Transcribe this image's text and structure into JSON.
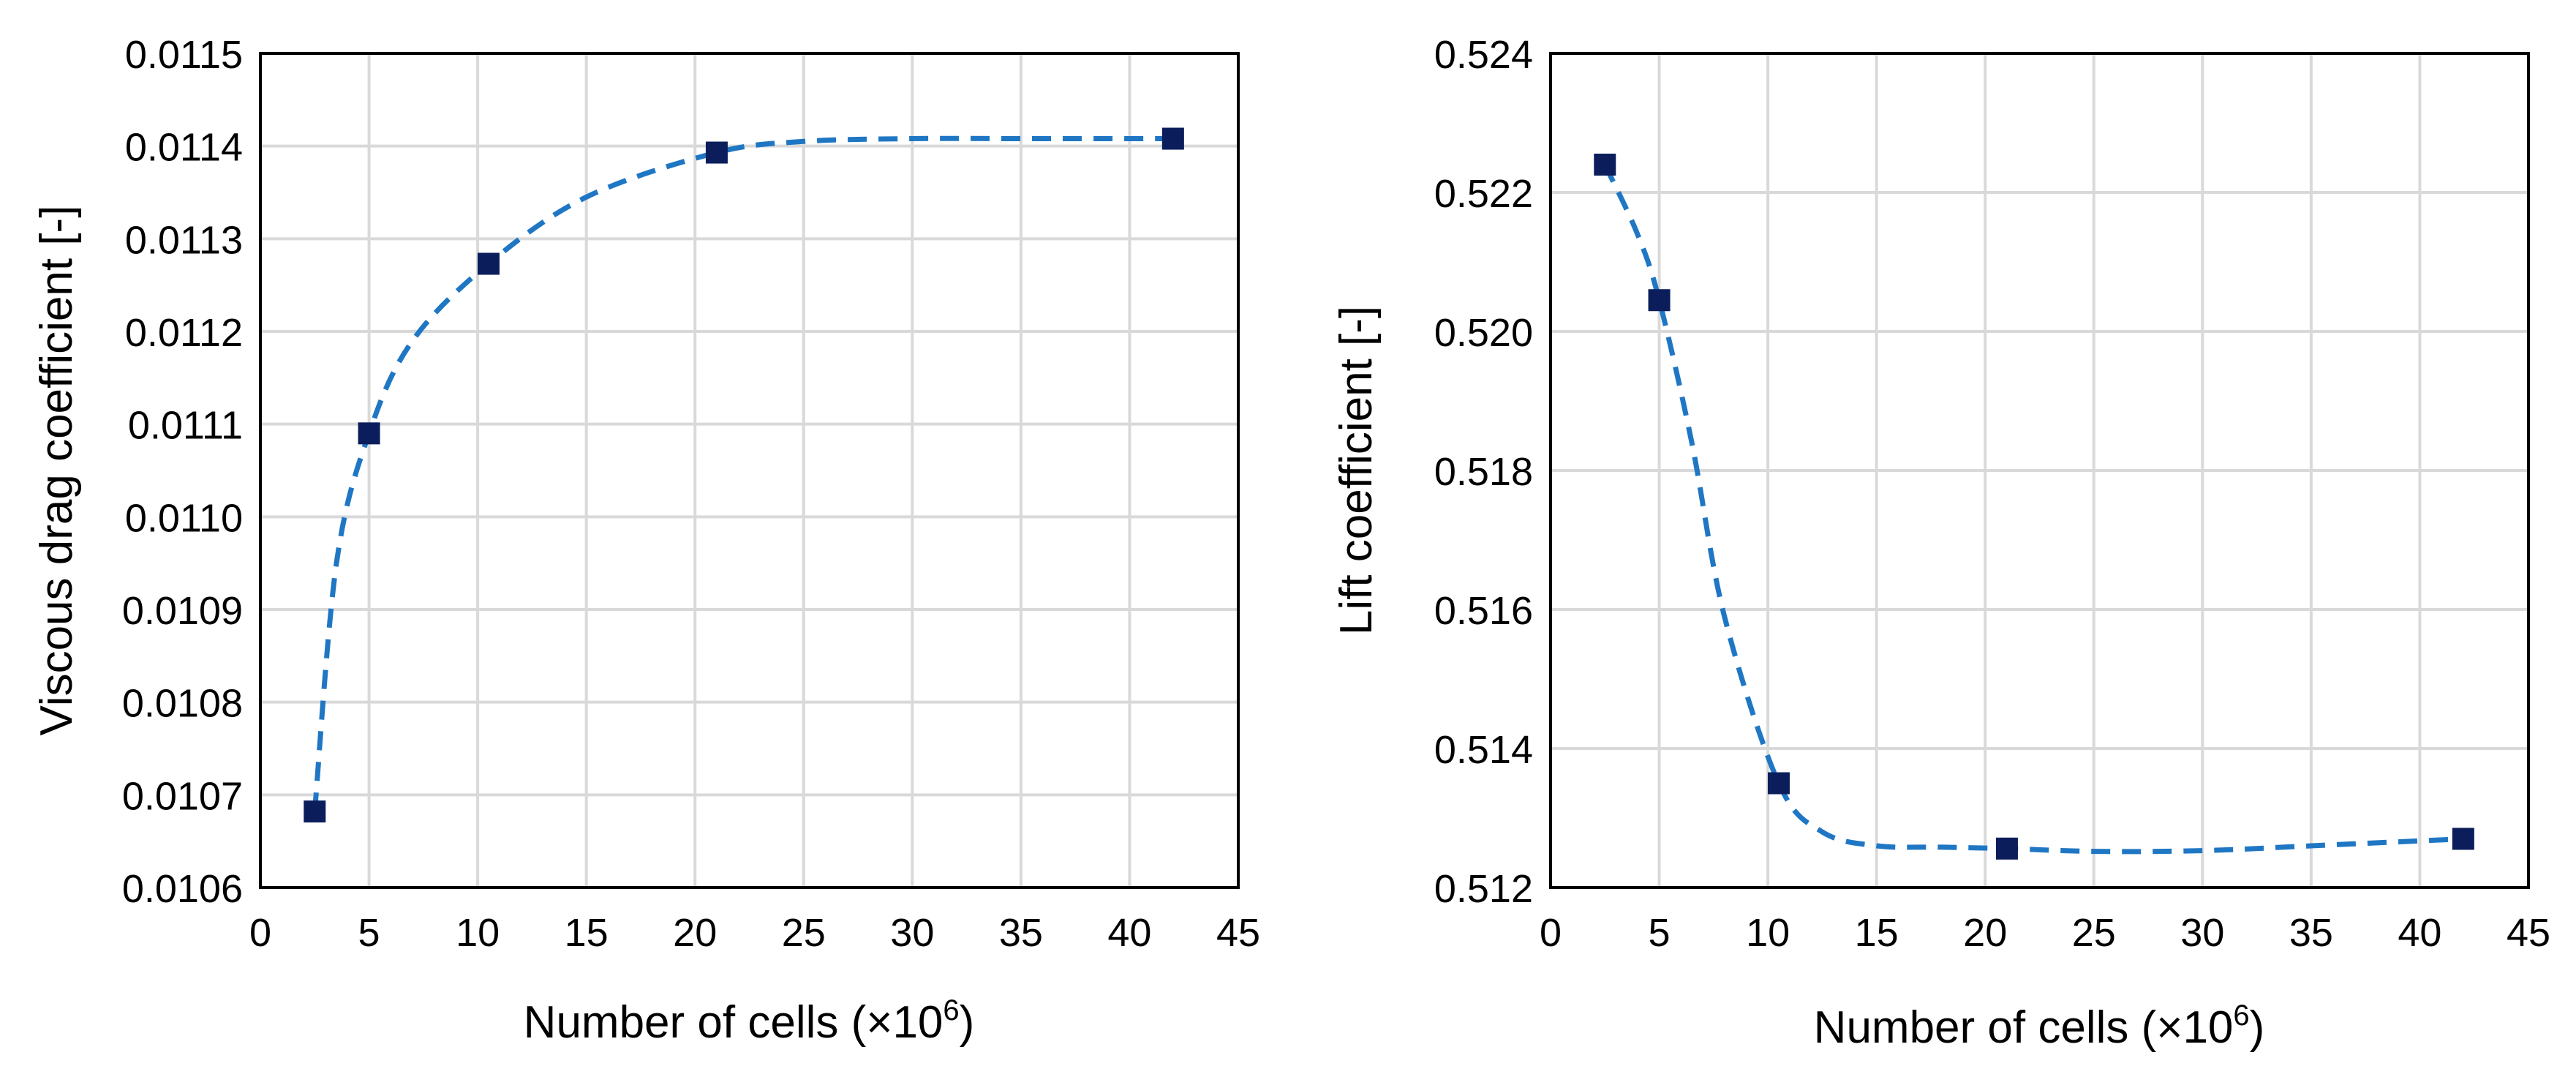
{
  "colors": {
    "marker": "#0b1e5b",
    "trendline": "#1f77c4",
    "grid": "#d9d9d9",
    "frame": "#000000"
  },
  "chart_data": [
    {
      "type": "scatter",
      "title": "",
      "xlabel": "Number of cells (×10",
      "xlabel_sup": "6",
      "xlabel_close": ")",
      "ylabel": "Viscous drag coefficient [-]",
      "xlim": [
        0,
        45
      ],
      "ylim": [
        0.0106,
        0.0115
      ],
      "x_ticks": [
        0,
        5,
        10,
        15,
        20,
        25,
        30,
        35,
        40,
        45
      ],
      "y_ticks": [
        0.0106,
        0.0107,
        0.0108,
        0.0109,
        0.011,
        0.0111,
        0.0112,
        0.0113,
        0.0114,
        0.0115
      ],
      "x_tick_labels": [
        "0",
        "5",
        "10",
        "15",
        "20",
        "25",
        "30",
        "35",
        "40",
        "45"
      ],
      "y_tick_labels": [
        "0.0106",
        "0.0107",
        "0.0108",
        "0.0109",
        "0.0110",
        "0.0111",
        "0.0112",
        "0.0113",
        "0.0114",
        "0.0115"
      ],
      "grid": true,
      "series": [
        {
          "name": "Viscous drag coefficient",
          "x": [
            2.5,
            5,
            10.5,
            21,
            42
          ],
          "y": [
            0.010682,
            0.01109,
            0.011273,
            0.011393,
            0.011408
          ]
        }
      ],
      "trendline": {
        "style": "dashed",
        "x": [
          2.5,
          3.5,
          5,
          7,
          10.5,
          15,
          21,
          25,
          30,
          35,
          42
        ],
        "y": [
          0.010682,
          0.01095,
          0.01109,
          0.01119,
          0.011273,
          0.011345,
          0.011393,
          0.011405,
          0.011408,
          0.011408,
          0.011408
        ]
      }
    },
    {
      "type": "scatter",
      "title": "",
      "xlabel": "Number of cells (×10",
      "xlabel_sup": "6",
      "xlabel_close": ")",
      "ylabel": "Lift coefficient [-]",
      "xlim": [
        0,
        45
      ],
      "ylim": [
        0.512,
        0.524
      ],
      "x_ticks": [
        0,
        5,
        10,
        15,
        20,
        25,
        30,
        35,
        40,
        45
      ],
      "y_ticks": [
        0.512,
        0.514,
        0.516,
        0.518,
        0.52,
        0.522,
        0.524
      ],
      "x_tick_labels": [
        "0",
        "5",
        "10",
        "15",
        "20",
        "25",
        "30",
        "35",
        "40",
        "45"
      ],
      "y_tick_labels": [
        "0.512",
        "0.514",
        "0.516",
        "0.518",
        "0.520",
        "0.522",
        "0.524"
      ],
      "grid": true,
      "series": [
        {
          "name": "Lift coefficient",
          "x": [
            2.5,
            5,
            10.5,
            21,
            42
          ],
          "y": [
            0.5224,
            0.52045,
            0.5135,
            0.51256,
            0.5127
          ]
        }
      ],
      "trendline": {
        "style": "dashed",
        "x": [
          2.5,
          4,
          5,
          6.5,
          8,
          10.5,
          12.5,
          15,
          18,
          21,
          25,
          30,
          35,
          42
        ],
        "y": [
          0.5224,
          0.5214,
          0.52045,
          0.5184,
          0.5159,
          0.5135,
          0.5128,
          0.5126,
          0.51258,
          0.51256,
          0.51252,
          0.51253,
          0.5126,
          0.5127
        ]
      }
    }
  ]
}
